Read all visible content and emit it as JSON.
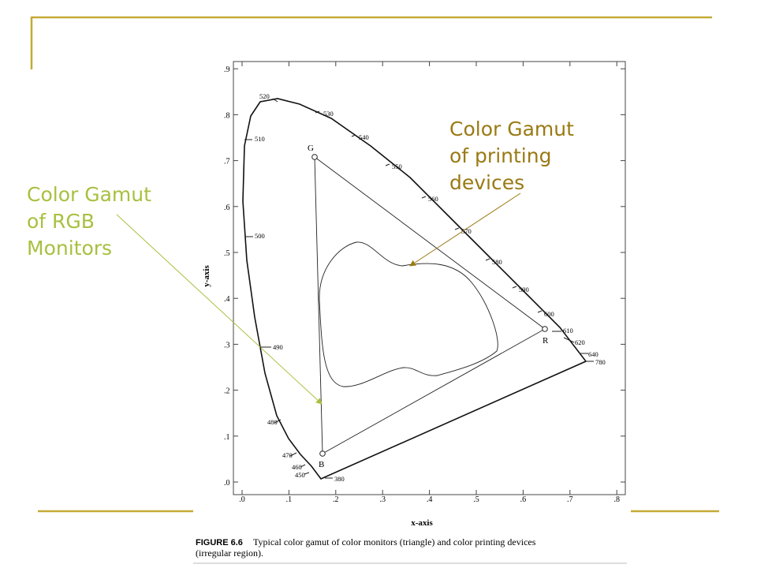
{
  "slide": {
    "annotations": [
      {
        "lines": [
          "Color Gamut",
          "of printing",
          "devices"
        ]
      },
      {
        "lines": [
          "Color Gamut",
          "of RGB",
          "Monitors"
        ]
      }
    ]
  },
  "figure": {
    "x_axis_label": "x-axis",
    "y_axis_label": "y-axis",
    "xticks": [
      ".0",
      ".1",
      ".2",
      ".3",
      ".4",
      ".5",
      ".6",
      ".7",
      ".8"
    ],
    "yticks": [
      ".0",
      ".1",
      ".2",
      ".3",
      ".4",
      ".5",
      ".6",
      ".7",
      ".8",
      ".9"
    ],
    "wavelengths": [
      "520",
      "530",
      "540",
      "550",
      "560",
      "570",
      "580",
      "590",
      "600",
      "610",
      "620",
      "640",
      "780",
      "510",
      "500",
      "490",
      "480",
      "470",
      "460",
      "450",
      "380"
    ],
    "primaries": [
      "G",
      "R",
      "B"
    ],
    "caption_label": "FIGURE 6.6",
    "caption_lines": [
      "Typical color gamut of color monitors (triangle) and color printing devices",
      "(irregular region)."
    ]
  }
}
